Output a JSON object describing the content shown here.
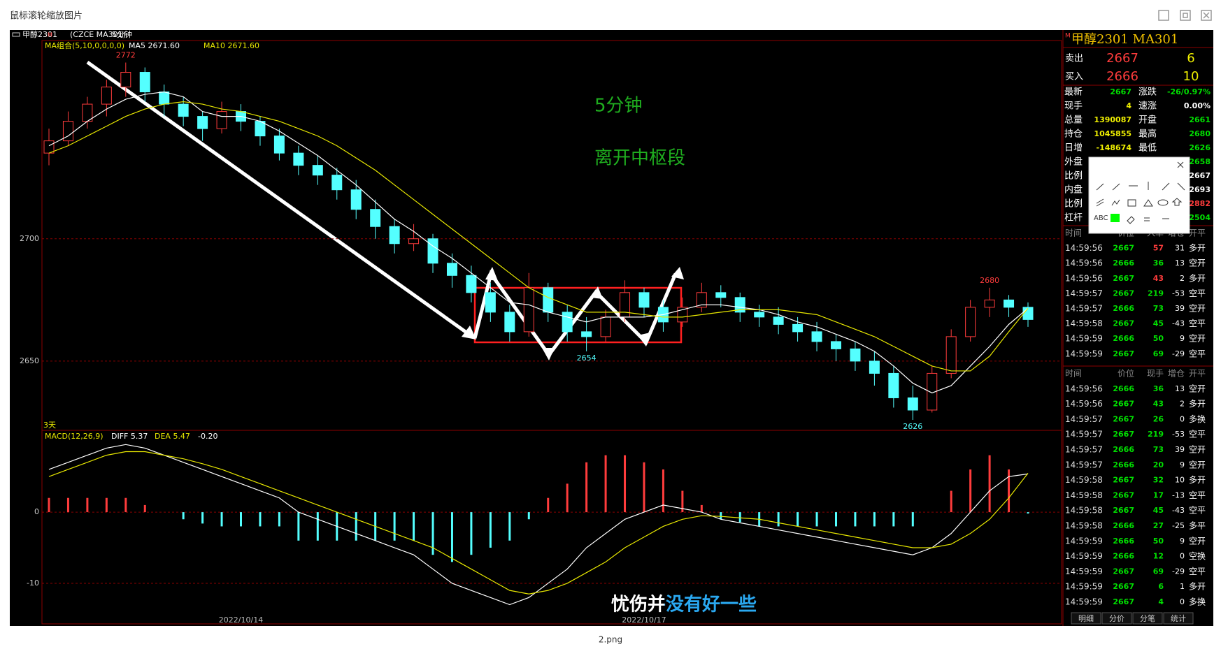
{
  "window": {
    "title": "鼠标滚轮缩放图片",
    "caption": "2.png"
  },
  "chart_data": {
    "type": "candlestick",
    "header": [
      "甲醇2301",
      "M",
      "(CZCE MA301)",
      "5分钟"
    ],
    "ma_header": [
      "MA组合(5,10,0,0,0,0)",
      "MA5 2671.60",
      "MA10 2671.60"
    ],
    "annotations": [
      "5分钟",
      "离开中枢段"
    ],
    "period_label": "3天",
    "subtitle": "忧伤并没有好一些",
    "categories": [
      null,
      null,
      null,
      null,
      null,
      null,
      null,
      null,
      null,
      null,
      "2022/10/14",
      null,
      null,
      null,
      null,
      null,
      null,
      null,
      null,
      null,
      null,
      null,
      null,
      null,
      null,
      null,
      null,
      null,
      null,
      null,
      null,
      "2022/10/17",
      null,
      null,
      null,
      null,
      null,
      null,
      null,
      null,
      null,
      null,
      null,
      null,
      null,
      null,
      null,
      null,
      null,
      null,
      null,
      null
    ],
    "candles": [
      [
        2735,
        2745,
        2730,
        2740
      ],
      [
        2740,
        2752,
        2738,
        2748
      ],
      [
        2748,
        2758,
        2745,
        2755
      ],
      [
        2755,
        2765,
        2750,
        2762
      ],
      [
        2762,
        2772,
        2758,
        2768
      ],
      [
        2768,
        2770,
        2756,
        2760
      ],
      [
        2760,
        2763,
        2750,
        2755
      ],
      [
        2755,
        2758,
        2746,
        2750
      ],
      [
        2750,
        2752,
        2740,
        2745
      ],
      [
        2745,
        2756,
        2743,
        2752
      ],
      [
        2752,
        2755,
        2744,
        2748
      ],
      [
        2748,
        2750,
        2738,
        2742
      ],
      [
        2742,
        2745,
        2732,
        2735
      ],
      [
        2735,
        2738,
        2726,
        2730
      ],
      [
        2730,
        2734,
        2722,
        2726
      ],
      [
        2726,
        2729,
        2716,
        2720
      ],
      [
        2720,
        2724,
        2708,
        2712
      ],
      [
        2712,
        2716,
        2700,
        2705
      ],
      [
        2705,
        2708,
        2694,
        2698
      ],
      [
        2698,
        2706,
        2695,
        2700
      ],
      [
        2700,
        2702,
        2686,
        2690
      ],
      [
        2690,
        2694,
        2680,
        2685
      ],
      [
        2685,
        2689,
        2674,
        2678
      ],
      [
        2678,
        2682,
        2666,
        2670
      ],
      [
        2670,
        2673,
        2658,
        2662
      ],
      [
        2662,
        2686,
        2660,
        2680
      ],
      [
        2680,
        2682,
        2666,
        2670
      ],
      [
        2670,
        2673,
        2658,
        2662
      ],
      [
        2662,
        2668,
        2654,
        2660
      ],
      [
        2660,
        2671,
        2658,
        2668
      ],
      [
        2668,
        2683,
        2666,
        2678
      ],
      [
        2678,
        2680,
        2668,
        2672
      ],
      [
        2672,
        2675,
        2662,
        2666
      ],
      [
        2666,
        2676,
        2664,
        2672
      ],
      [
        2672,
        2682,
        2670,
        2678
      ],
      [
        2678,
        2681,
        2672,
        2676
      ],
      [
        2676,
        2678,
        2666,
        2670
      ],
      [
        2670,
        2673,
        2664,
        2668
      ],
      [
        2668,
        2672,
        2661,
        2665
      ],
      [
        2665,
        2668,
        2658,
        2662
      ],
      [
        2662,
        2666,
        2654,
        2658
      ],
      [
        2658,
        2661,
        2650,
        2655
      ],
      [
        2655,
        2658,
        2646,
        2650
      ],
      [
        2650,
        2654,
        2640,
        2645
      ],
      [
        2645,
        2648,
        2631,
        2635
      ],
      [
        2635,
        2640,
        2626,
        2630
      ],
      [
        2630,
        2648,
        2629,
        2645
      ],
      [
        2645,
        2663,
        2643,
        2660
      ],
      [
        2660,
        2675,
        2658,
        2672
      ],
      [
        2672,
        2680,
        2668,
        2675
      ],
      [
        2675,
        2677,
        2668,
        2672
      ],
      [
        2672,
        2674,
        2664,
        2667
      ]
    ],
    "up_color": "#ff3c3c",
    "down_color": "#54ffff",
    "series": [
      {
        "name": "MA5",
        "color": "#ffffff",
        "values": [
          2738,
          2742,
          2748,
          2753,
          2757,
          2759,
          2760,
          2758,
          2752,
          2750,
          2750,
          2748,
          2744,
          2739,
          2734,
          2728,
          2722,
          2715,
          2708,
          2703,
          2697,
          2692,
          2686,
          2680,
          2674,
          2673,
          2670,
          2668,
          2666,
          2668,
          2668,
          2668,
          2669,
          2671,
          2673,
          2673,
          2672,
          2671,
          2669,
          2666,
          2664,
          2661,
          2658,
          2654,
          2648,
          2641,
          2637,
          2640,
          2648,
          2656,
          2665,
          2671.6
        ]
      },
      {
        "name": "MA10",
        "color": "#e8e800",
        "values": [
          2735,
          2738,
          2742,
          2746,
          2750,
          2753,
          2755,
          2756,
          2755,
          2753,
          2752,
          2750,
          2748,
          2745,
          2742,
          2738,
          2733,
          2728,
          2722,
          2716,
          2710,
          2704,
          2698,
          2692,
          2686,
          2680,
          2676,
          2673,
          2670,
          2670,
          2670,
          2669,
          2668,
          2668,
          2669,
          2670,
          2671,
          2671,
          2671,
          2670,
          2669,
          2666,
          2663,
          2660,
          2656,
          2652,
          2648,
          2646,
          2646,
          2652,
          2662,
          2671.6
        ]
      }
    ],
    "ylim": [
      2622,
      2781
    ],
    "yticks": [
      2650,
      2700
    ],
    "grid": true,
    "macd": {
      "header": [
        "MACD(12,26,9)",
        "DIFF 5.37",
        "DEA 5.47",
        "-0.20"
      ],
      "ylim": [
        -15.7,
        11.3
      ],
      "yticks": [
        0,
        -10
      ],
      "series": [
        {
          "name": "DIFF",
          "color": "#ffffff",
          "values": [
            6,
            7,
            8,
            9,
            9.5,
            9,
            8,
            7,
            6,
            5,
            4,
            3,
            2,
            0,
            -1,
            -2,
            -3,
            -4,
            -5,
            -6,
            -8,
            -10,
            -11,
            -12,
            -13,
            -12,
            -10,
            -8,
            -5,
            -3,
            -1,
            0,
            1,
            0.5,
            0,
            -1,
            -1.5,
            -2,
            -2.5,
            -3,
            -3.5,
            -4,
            -4.5,
            -5,
            -5.5,
            -6,
            -5,
            -3,
            0,
            3,
            5,
            5.37
          ]
        },
        {
          "name": "DEA",
          "color": "#e8e800",
          "values": [
            5,
            6,
            7,
            8,
            8.5,
            8.5,
            8,
            7.5,
            6.8,
            6,
            5,
            4,
            3,
            2,
            1,
            0,
            -1,
            -2,
            -3,
            -4,
            -5,
            -6.5,
            -8,
            -9.5,
            -11,
            -11.5,
            -11,
            -10,
            -8.5,
            -7,
            -5,
            -3.5,
            -2,
            -1,
            -0.5,
            -0.6,
            -0.8,
            -1,
            -1.5,
            -2,
            -2.5,
            -3,
            -3.5,
            -4,
            -4.5,
            -5,
            -5,
            -4.5,
            -3,
            -1,
            2,
            5.47
          ]
        }
      ],
      "histogram": [
        2,
        2,
        2,
        2,
        2,
        1,
        0,
        -1,
        -1.6,
        -2,
        -2,
        -2,
        -2,
        -4,
        -4,
        -4,
        -4,
        -4,
        -4,
        -4,
        -6,
        -7,
        -6,
        -5,
        -4,
        -1,
        2,
        4,
        7,
        8,
        8,
        7,
        6,
        3,
        1,
        -1,
        -1.4,
        -2,
        -2,
        -2,
        -2,
        -2,
        -2,
        -2,
        -2,
        -2,
        0,
        3,
        6,
        8,
        6,
        -0.2
      ]
    }
  },
  "quote": {
    "title": "甲醇2301  MA301",
    "marker": "M",
    "sell": [
      "卖出",
      2667,
      6
    ],
    "buy": [
      "买入",
      2666,
      10
    ],
    "stats": [
      {
        "l1": "最新",
        "v1": 2667,
        "c1": "#00e000",
        "l2": "涨跌",
        "v2": "-26/0.97%",
        "c2": "#00e000"
      },
      {
        "l1": "现手",
        "v1": 4,
        "c1": "#f0f000",
        "l2": "速涨",
        "v2": "0.00%",
        "c2": "#ffffff"
      },
      {
        "l1": "总量",
        "v1": 1390087,
        "c1": "#f0f000",
        "l2": "开盘",
        "v2": 2661,
        "c2": "#00e000"
      },
      {
        "l1": "持仓",
        "v1": 1045855,
        "c1": "#f0f000",
        "l2": "最高",
        "v2": 2680,
        "c2": "#00e000"
      },
      {
        "l1": "日增",
        "v1": -148674,
        "c1": "#f0f000",
        "l2": "最低",
        "v2": 2626,
        "c2": "#00e000"
      },
      {
        "l1": "外盘",
        "l2": "",
        "v2": 2658,
        "c2": "#00e000"
      },
      {
        "l1": "比例",
        "v2": 2667,
        "c2": "#ffffff"
      },
      {
        "l1": "内盘",
        "v2": 2693,
        "c2": "#ffffff"
      },
      {
        "l1": "比例",
        "v2": 2882,
        "c2": "#ff3c3c"
      },
      {
        "l1": "杠杆",
        "v2": 2504,
        "c2": "#00e000"
      }
    ]
  },
  "ticks1": {
    "header": [
      "时间",
      "价位",
      "入单",
      "增仓",
      "开平"
    ],
    "rows": [
      [
        "14:59:56",
        2667,
        57,
        31,
        "多开"
      ],
      [
        "14:59:56",
        2666,
        36,
        13,
        "空开"
      ],
      [
        "14:59:56",
        2667,
        43,
        2,
        "多开"
      ],
      [
        "14:59:57",
        2667,
        219,
        -53,
        "空平"
      ],
      [
        "14:59:57",
        2666,
        73,
        39,
        "空开"
      ],
      [
        "14:59:58",
        2667,
        45,
        -43,
        "空平"
      ],
      [
        "14:59:59",
        2666,
        50,
        9,
        "空开"
      ],
      [
        "14:59:59",
        2667,
        69,
        -29,
        "空平"
      ]
    ]
  },
  "ticks2": {
    "header": [
      "时间",
      "价位",
      "现手",
      "增仓",
      "开平"
    ],
    "rows": [
      [
        "14:59:56",
        2666,
        36,
        13,
        "空开"
      ],
      [
        "14:59:56",
        2667,
        43,
        2,
        "多开"
      ],
      [
        "14:59:57",
        2667,
        26,
        0,
        "多换"
      ],
      [
        "14:59:57",
        2667,
        219,
        -53,
        "空平"
      ],
      [
        "14:59:57",
        2666,
        73,
        39,
        "空开"
      ],
      [
        "14:59:57",
        2666,
        20,
        9,
        "空开"
      ],
      [
        "14:59:58",
        2667,
        32,
        10,
        "多开"
      ],
      [
        "14:59:58",
        2667,
        17,
        -13,
        "空平"
      ],
      [
        "14:59:58",
        2667,
        45,
        -43,
        "空平"
      ],
      [
        "14:59:58",
        2666,
        27,
        -25,
        "多平"
      ],
      [
        "14:59:59",
        2666,
        50,
        9,
        "空开"
      ],
      [
        "14:59:59",
        2666,
        12,
        0,
        "空换"
      ],
      [
        "14:59:59",
        2667,
        69,
        -29,
        "空平"
      ],
      [
        "14:59:59",
        2667,
        6,
        1,
        "多开"
      ],
      [
        "14:59:59",
        2667,
        4,
        0,
        "多换"
      ]
    ]
  },
  "tabs": [
    "明细",
    "分价",
    "分笔",
    "统计"
  ],
  "popup": {
    "text_tool": "ABC"
  }
}
